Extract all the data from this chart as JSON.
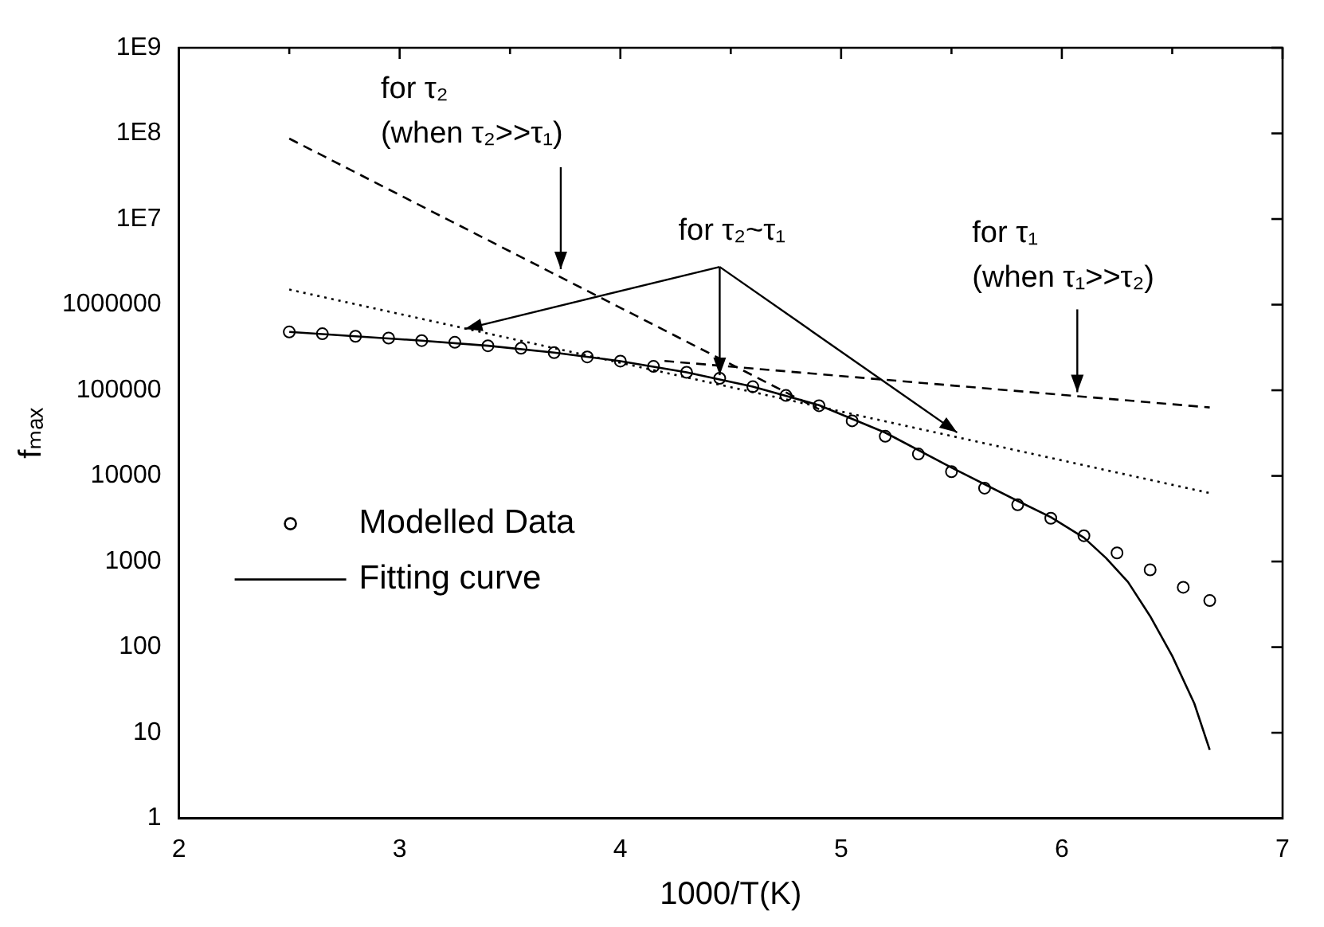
{
  "chart_data": {
    "type": "line",
    "xlabel": "1000/T(K)",
    "ylabel": "fₘₐₓ",
    "log": "y",
    "grid": false,
    "legend": "bottom left",
    "xlim": [
      2,
      7
    ],
    "xticks": [
      2,
      {
        "value": 2.5,
        "label": null
      },
      3,
      {
        "value": 3.5,
        "label": null
      },
      4,
      {
        "value": 4.5,
        "label": null
      },
      5,
      {
        "value": 5.5,
        "label": null
      },
      6,
      {
        "value": 6.5,
        "label": null
      },
      7
    ],
    "ylim": [
      1,
      1000000000
    ],
    "yticks": [
      1,
      10,
      100,
      1000,
      10000,
      100000,
      1000000,
      {
        "value": 10000000,
        "label": "1E7"
      },
      {
        "value": 100000000,
        "label": "1E8"
      },
      {
        "value": 1000000000,
        "label": "1E9"
      }
    ],
    "series": [
      {
        "name": "Modelled Data",
        "type": "scatter",
        "marker": "circle",
        "color": "#000000",
        "x": [
          2.5,
          2.65,
          2.8,
          2.95,
          3.1,
          3.25,
          3.4,
          3.55,
          3.7,
          3.85,
          4.0,
          4.15,
          4.3,
          4.45,
          4.6,
          4.75,
          4.9,
          5.05,
          5.2,
          5.35,
          5.5,
          5.65,
          5.8,
          5.95,
          6.1,
          6.25,
          6.4,
          6.55,
          6.67
        ],
        "values": [
          480000,
          457000,
          427000,
          407000,
          380000,
          363000,
          331000,
          309000,
          275000,
          245000,
          219000,
          190000,
          162000,
          138000,
          110000,
          87000,
          66000,
          44000,
          29000,
          18000,
          11200,
          7200,
          4600,
          3200,
          2000,
          1260,
          800,
          500,
          350
        ]
      },
      {
        "name": "Fitting curve",
        "line_style": "solid",
        "color": "#000000",
        "x": [
          2.5,
          2.8,
          3.1,
          3.4,
          3.7,
          4.0,
          4.3,
          4.6,
          4.9,
          5.2,
          5.5,
          5.8,
          5.95,
          6.1,
          6.2,
          6.3,
          6.4,
          6.5,
          6.6,
          6.67
        ],
        "values": [
          480000,
          427000,
          380000,
          331000,
          275000,
          219000,
          162000,
          110000,
          67000,
          32000,
          12500,
          5100,
          3300,
          1900,
          1100,
          575,
          230,
          79,
          22,
          6.3
        ]
      },
      {
        "line_style": "dashed",
        "color": "#000000",
        "x": [
          2.5,
          4.9
        ],
        "values": [
          87000000,
          60000
        ]
      },
      {
        "line_style": "dashed",
        "color": "#000000",
        "x": [
          4.2,
          6.67
        ],
        "values": [
          220000,
          63000
        ]
      },
      {
        "line_style": "dotted",
        "color": "#000000",
        "x": [
          2.5,
          6.67
        ],
        "values": [
          1500000,
          6300
        ]
      }
    ],
    "annotations": [
      {
        "text": "for τ₂\n(when τ₂>>τ₁)",
        "x": 3.73,
        "y": 2600000
      },
      {
        "text": "for τ₂~τ₁",
        "x": 4.45,
        "y": 150000
      },
      {
        "text": "for τ₁\n(when τ₁>>τ₂)",
        "x": 6.07,
        "y": 95000
      }
    ]
  }
}
